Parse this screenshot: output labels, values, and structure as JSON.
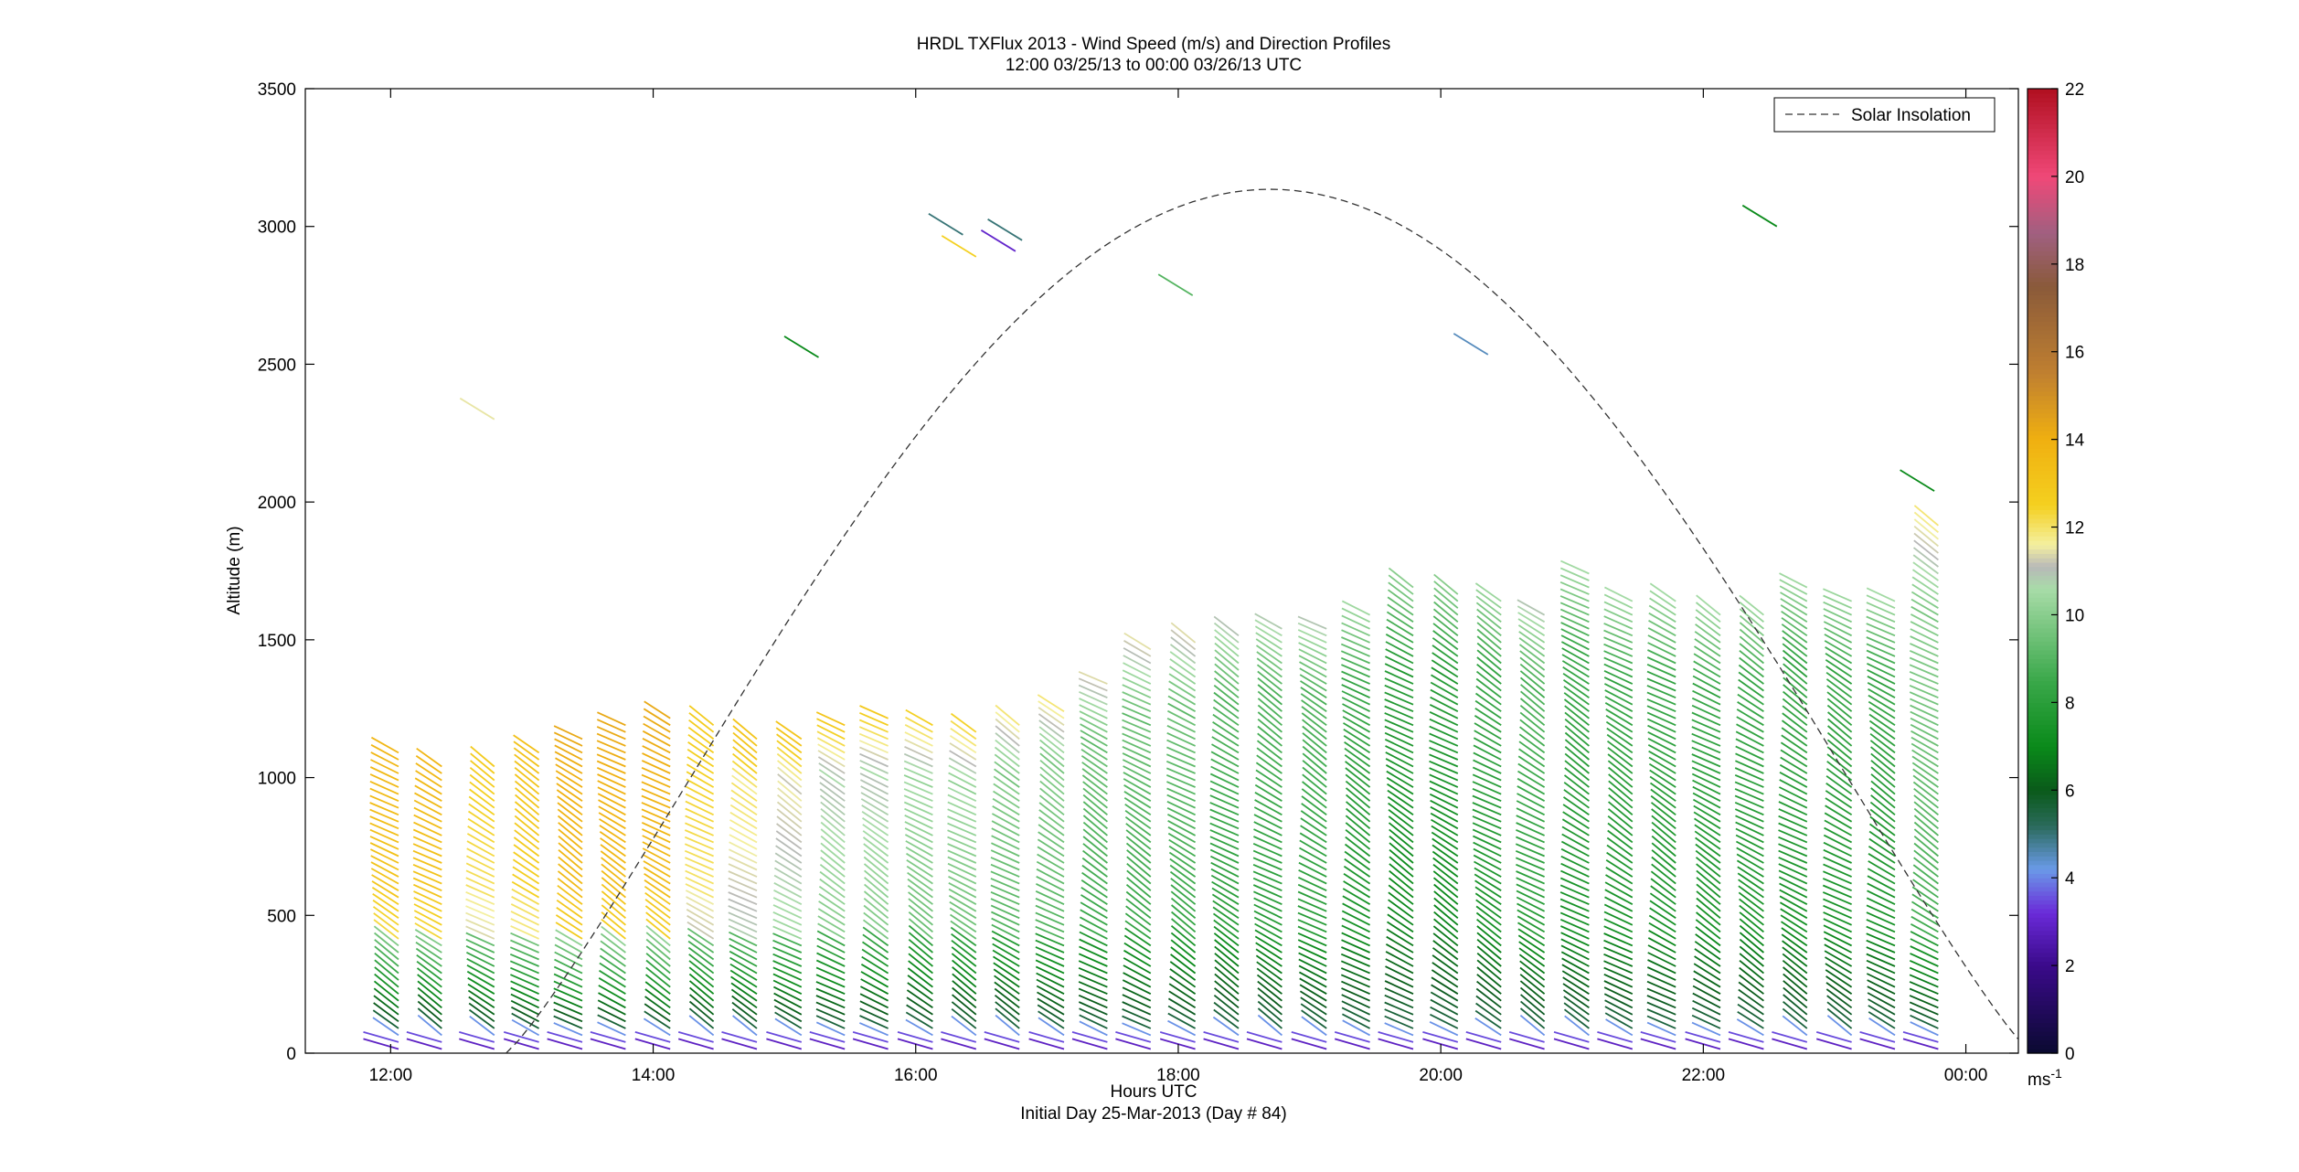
{
  "figure": {
    "title_line1": "HRDL TXFlux 2013 - Wind Speed (m/s) and Direction Profiles",
    "title_line2": "12:00 03/25/13 to 00:00 03/26/13  UTC",
    "xlabel_line1": "Hours UTC",
    "xlabel_line2": "Initial Day 25-Mar-2013 (Day # 84)",
    "ylabel": "Altitude (m)",
    "legend_label": "Solar Insolation",
    "colorbar_unit": "ms",
    "colorbar_unit_exp": "-1"
  },
  "chart_data": {
    "type": "scatter",
    "title": "HRDL TXFlux 2013 - Wind Speed (m/s) and Direction Profiles",
    "subtitle": "12:00 03/25/13 to 00:00 03/26/13  UTC",
    "xlabel": "Hours UTC",
    "ylabel": "Altitude (m)",
    "x_range_hours": [
      11.35,
      24.4
    ],
    "ylim": [
      0,
      3500
    ],
    "x_ticks": [
      {
        "hour": 12,
        "label": "12:00"
      },
      {
        "hour": 14,
        "label": "14:00"
      },
      {
        "hour": 16,
        "label": "16:00"
      },
      {
        "hour": 18,
        "label": "18:00"
      },
      {
        "hour": 20,
        "label": "20:00"
      },
      {
        "hour": 22,
        "label": "22:00"
      },
      {
        "hour": 24,
        "label": "00:00"
      }
    ],
    "y_ticks": [
      0,
      500,
      1000,
      1500,
      2000,
      2500,
      3000,
      3500
    ],
    "legend": {
      "position": "top-right",
      "entries": [
        "Solar Insolation"
      ]
    },
    "colorbar": {
      "min": 0,
      "max": 22,
      "ticks": [
        0,
        2,
        4,
        6,
        8,
        10,
        12,
        14,
        16,
        18,
        20,
        22
      ],
      "unit": "ms-1",
      "stops": [
        {
          "v": 0,
          "color": "#0a0a30"
        },
        {
          "v": 2,
          "color": "#3a0a8a"
        },
        {
          "v": 3.2,
          "color": "#6a2ad8"
        },
        {
          "v": 4.2,
          "color": "#6a9ae8"
        },
        {
          "v": 5.2,
          "color": "#2a6a5a"
        },
        {
          "v": 6,
          "color": "#0a5a1a"
        },
        {
          "v": 7,
          "color": "#0a8a1a"
        },
        {
          "v": 8.5,
          "color": "#3aa84a"
        },
        {
          "v": 10.6,
          "color": "#a8dca8"
        },
        {
          "v": 11.1,
          "color": "#b8b8b8"
        },
        {
          "v": 11.6,
          "color": "#f4f0a0"
        },
        {
          "v": 12.5,
          "color": "#f4d020"
        },
        {
          "v": 14,
          "color": "#f0b010"
        },
        {
          "v": 15.5,
          "color": "#c08030"
        },
        {
          "v": 17.5,
          "color": "#8a5a3a"
        },
        {
          "v": 18.7,
          "color": "#a06080"
        },
        {
          "v": 20,
          "color": "#f04878"
        },
        {
          "v": 22,
          "color": "#b01020"
        }
      ]
    },
    "solar_insolation": {
      "style": "dashed",
      "color": "#222222",
      "start_hour": 12.88,
      "peak_hour": 18.7,
      "end_hour": 24.5,
      "peak_altitude": 3135
    },
    "wind_profiles": {
      "note": "profile time (hour), max altitude (m), mid-level speed (m/s)",
      "profiles": [
        {
          "hour": 12.0,
          "top": 1100,
          "speed": 13.0
        },
        {
          "hour": 12.33,
          "top": 1050,
          "speed": 13.0
        },
        {
          "hour": 12.73,
          "top": 1050,
          "speed": 12.0
        },
        {
          "hour": 13.07,
          "top": 1100,
          "speed": 12.5
        },
        {
          "hour": 13.4,
          "top": 1150,
          "speed": 13.5
        },
        {
          "hour": 13.73,
          "top": 1200,
          "speed": 13.5
        },
        {
          "hour": 14.07,
          "top": 1230,
          "speed": 13.5
        },
        {
          "hour": 14.4,
          "top": 1200,
          "speed": 12.0
        },
        {
          "hour": 14.73,
          "top": 1150,
          "speed": 11.5
        },
        {
          "hour": 15.07,
          "top": 1150,
          "speed": 11.0
        },
        {
          "hour": 15.4,
          "top": 1190,
          "speed": 10.5
        },
        {
          "hour": 15.73,
          "top": 1230,
          "speed": 10.5
        },
        {
          "hour": 16.07,
          "top": 1190,
          "speed": 10.0
        },
        {
          "hour": 16.4,
          "top": 1170,
          "speed": 10.0
        },
        {
          "hour": 16.73,
          "top": 1200,
          "speed": 9.5
        },
        {
          "hour": 17.07,
          "top": 1250,
          "speed": 9.5
        },
        {
          "hour": 17.4,
          "top": 1350,
          "speed": 9.0
        },
        {
          "hour": 17.73,
          "top": 1470,
          "speed": 9.0
        },
        {
          "hour": 18.07,
          "top": 1500,
          "speed": 9.0
        },
        {
          "hour": 18.4,
          "top": 1520,
          "speed": 8.5
        },
        {
          "hour": 18.73,
          "top": 1560,
          "speed": 8.5
        },
        {
          "hour": 19.07,
          "top": 1550,
          "speed": 8.5
        },
        {
          "hour": 19.4,
          "top": 1600,
          "speed": 8.0
        },
        {
          "hour": 19.73,
          "top": 1690,
          "speed": 7.5
        },
        {
          "hour": 20.07,
          "top": 1670,
          "speed": 7.5
        },
        {
          "hour": 20.4,
          "top": 1660,
          "speed": 8.0
        },
        {
          "hour": 20.73,
          "top": 1600,
          "speed": 8.5
        },
        {
          "hour": 21.07,
          "top": 1740,
          "speed": 8.0
        },
        {
          "hour": 21.4,
          "top": 1640,
          "speed": 8.0
        },
        {
          "hour": 21.73,
          "top": 1640,
          "speed": 8.0
        },
        {
          "hour": 22.07,
          "top": 1590,
          "speed": 8.0
        },
        {
          "hour": 22.4,
          "top": 1600,
          "speed": 8.0
        },
        {
          "hour": 22.73,
          "top": 1700,
          "speed": 8.0
        },
        {
          "hour": 23.07,
          "top": 1660,
          "speed": 8.0
        },
        {
          "hour": 23.4,
          "top": 1640,
          "speed": 8.0
        },
        {
          "hour": 23.73,
          "top": 1930,
          "speed": 9.5
        }
      ]
    },
    "isolated_barbs": [
      {
        "hour": 12.73,
        "altitude": 2300,
        "speed": 11.5
      },
      {
        "hour": 15.2,
        "altitude": 2525,
        "speed": 7.0
      },
      {
        "hour": 16.3,
        "altitude": 2970,
        "speed": 5.0
      },
      {
        "hour": 16.4,
        "altitude": 2890,
        "speed": 12.5
      },
      {
        "hour": 16.7,
        "altitude": 2910,
        "speed": 3.0
      },
      {
        "hour": 16.75,
        "altitude": 2950,
        "speed": 5.0
      },
      {
        "hour": 18.05,
        "altitude": 2750,
        "speed": 9.0
      },
      {
        "hour": 20.3,
        "altitude": 2535,
        "speed": 4.5
      },
      {
        "hour": 22.5,
        "altitude": 3000,
        "speed": 7.0
      },
      {
        "hour": 23.7,
        "altitude": 2040,
        "speed": 7.0
      }
    ]
  }
}
